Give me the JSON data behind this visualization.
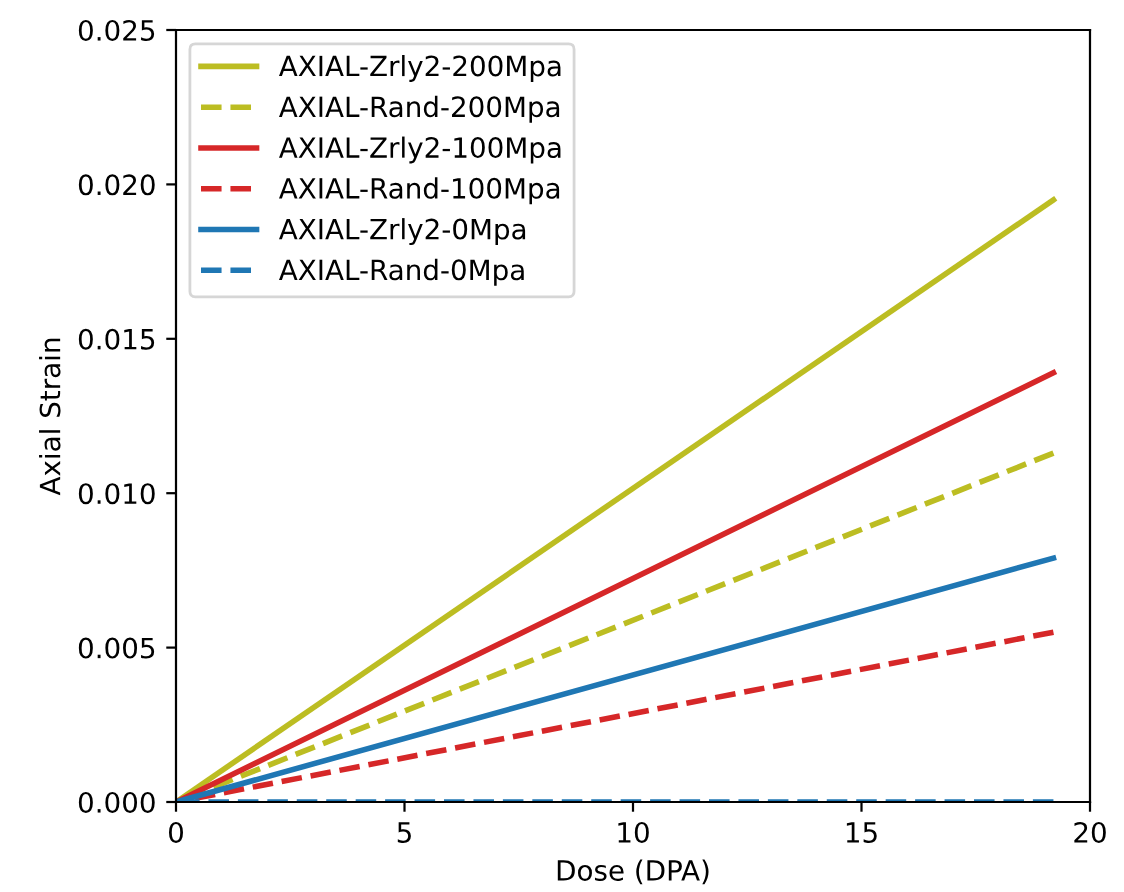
{
  "chart_data": {
    "type": "line",
    "xlabel": "Dose (DPA)",
    "ylabel": "Axial Strain",
    "x": [
      0,
      19.2
    ],
    "xlim": [
      0,
      20
    ],
    "xticks": [
      0,
      5,
      10,
      15,
      20
    ],
    "ylim": [
      0,
      0.025
    ],
    "yticks": [
      {
        "value": 0,
        "label": "0.000"
      },
      {
        "value": 0.005,
        "label": "0.005"
      },
      {
        "value": 0.01,
        "label": "0.010"
      },
      {
        "value": 0.015,
        "label": "0.015"
      },
      {
        "value": 0.02,
        "label": "0.020"
      },
      {
        "value": 0.025,
        "label": "0.025"
      }
    ],
    "legend": "top left",
    "grid": false,
    "series": [
      {
        "name": "AXIAL-Zrly2-200Mpa",
        "color": "#bcbd22",
        "line_style": "solid",
        "values": [
          0,
          0.0195
        ]
      },
      {
        "name": "AXIAL-Rand-200Mpa",
        "color": "#bcbd22",
        "line_style": "dashed",
        "values": [
          0,
          0.0113
        ]
      },
      {
        "name": "AXIAL-Zrly2-100Mpa",
        "color": "#d62728",
        "line_style": "solid",
        "values": [
          0,
          0.0139
        ]
      },
      {
        "name": "AXIAL-Rand-100Mpa",
        "color": "#d62728",
        "line_style": "dashed",
        "values": [
          0,
          0.0055
        ]
      },
      {
        "name": "AXIAL-Zrly2-0Mpa",
        "color": "#1f77b4",
        "line_style": "solid",
        "values": [
          0,
          0.0079
        ]
      },
      {
        "name": "AXIAL-Rand-0Mpa",
        "color": "#1f77b4",
        "line_style": "dashed",
        "values": [
          0,
          0
        ]
      }
    ]
  }
}
